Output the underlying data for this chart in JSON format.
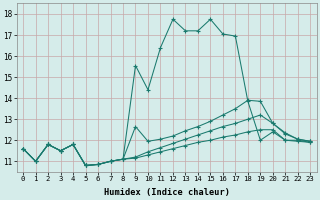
{
  "xlabel": "Humidex (Indice chaleur)",
  "background_color": "#d5ecea",
  "line_color": "#1a7a6e",
  "xlim": [
    -0.5,
    23.5
  ],
  "ylim": [
    10.5,
    18.5
  ],
  "yticks": [
    11,
    12,
    13,
    14,
    15,
    16,
    17,
    18
  ],
  "xticks": [
    0,
    1,
    2,
    3,
    4,
    5,
    6,
    7,
    8,
    9,
    10,
    11,
    12,
    13,
    14,
    15,
    16,
    17,
    18,
    19,
    20,
    21,
    22,
    23
  ],
  "series": [
    {
      "x": [
        0,
        1,
        2,
        3,
        4,
        5,
        6,
        7,
        8,
        9,
        10,
        11,
        12,
        13,
        14,
        15,
        16,
        17,
        18,
        19,
        20,
        21,
        22,
        23
      ],
      "y": [
        11.6,
        11.0,
        11.8,
        11.5,
        11.8,
        10.8,
        10.85,
        11.0,
        11.1,
        11.15,
        11.3,
        11.45,
        11.6,
        11.75,
        11.9,
        12.0,
        12.15,
        12.25,
        12.4,
        12.5,
        12.5,
        12.0,
        12.0,
        11.9
      ]
    },
    {
      "x": [
        0,
        1,
        2,
        3,
        4,
        5,
        6,
        7,
        8,
        9,
        10,
        11,
        12,
        13,
        14,
        15,
        16,
        17,
        18,
        19,
        20,
        21,
        22,
        23
      ],
      "y": [
        11.6,
        11.0,
        11.8,
        11.5,
        11.8,
        10.8,
        10.85,
        11.0,
        11.1,
        11.2,
        11.45,
        11.65,
        11.85,
        12.05,
        12.25,
        12.45,
        12.65,
        12.8,
        13.0,
        13.2,
        12.8,
        12.3,
        12.05,
        11.95
      ]
    },
    {
      "x": [
        0,
        1,
        2,
        3,
        4,
        5,
        6,
        7,
        8,
        9,
        10,
        11,
        12,
        13,
        14,
        15,
        16,
        17,
        18,
        19,
        20,
        21,
        22,
        23
      ],
      "y": [
        11.6,
        11.0,
        11.8,
        11.5,
        11.8,
        10.8,
        10.85,
        11.0,
        11.1,
        12.65,
        11.95,
        12.05,
        12.2,
        12.45,
        12.65,
        12.9,
        13.2,
        13.5,
        13.9,
        13.85,
        12.8,
        12.35,
        12.05,
        11.95
      ]
    },
    {
      "x": [
        0,
        1,
        2,
        3,
        4,
        5,
        6,
        7,
        8,
        9,
        10,
        11,
        12,
        13,
        14,
        15,
        16,
        17,
        18,
        19,
        20,
        21,
        22,
        23
      ],
      "y": [
        11.6,
        11.0,
        11.8,
        11.5,
        11.8,
        10.8,
        10.85,
        11.0,
        11.1,
        15.55,
        14.4,
        16.4,
        17.75,
        17.2,
        17.2,
        17.75,
        17.05,
        16.95,
        13.85,
        12.0,
        12.4,
        12.0,
        11.95,
        11.9
      ]
    }
  ]
}
